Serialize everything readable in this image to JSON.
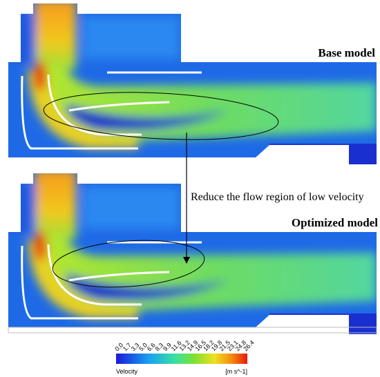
{
  "panels": [
    {
      "label": "Base model"
    },
    {
      "label": "Optimized model"
    }
  ],
  "annotation": "Reduce the flow region of low velocity",
  "colorbar": {
    "title": "Velocity",
    "unit": "[m s^-1]",
    "ticks": [
      "0.0",
      "1.7",
      "3.3",
      "5.0",
      "6.6",
      "8.3",
      "9.9",
      "11.6",
      "13.2",
      "14.9",
      "16.5",
      "18.2",
      "19.8",
      "21.5",
      "23.1",
      "24.8",
      "26.4"
    ]
  }
}
